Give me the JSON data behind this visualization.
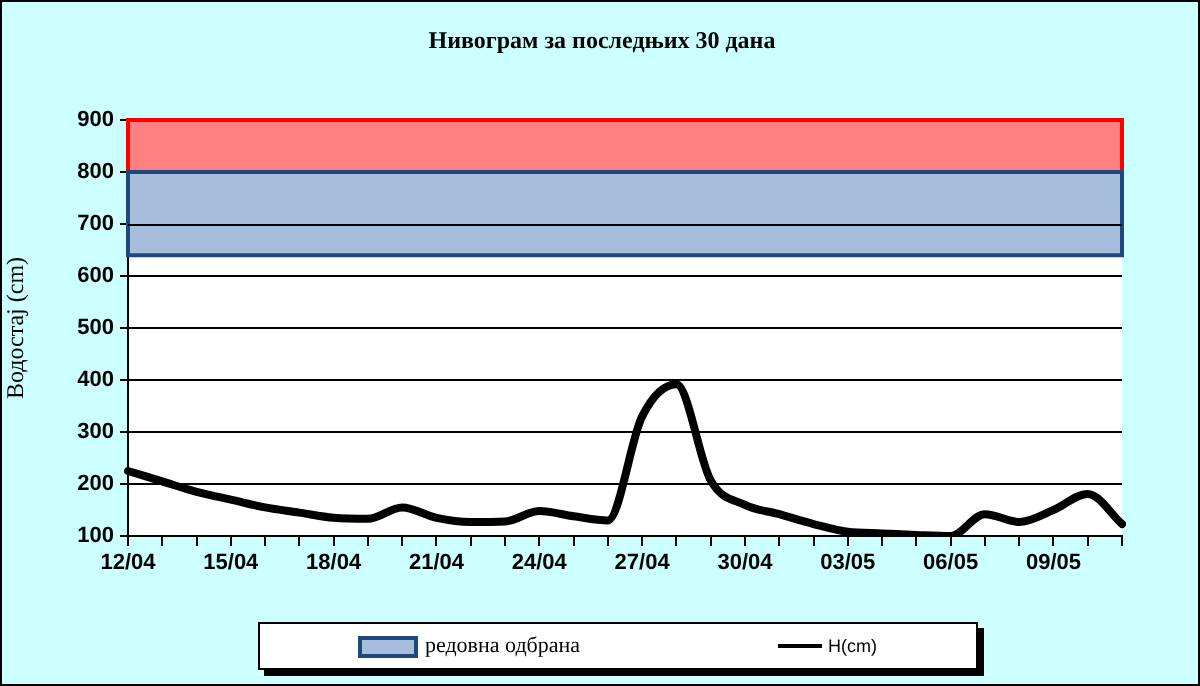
{
  "chart_data": {
    "type": "line",
    "title": "Нивограм за последњих 30 дана",
    "ylabel": "Водостај (cm)",
    "categories": [
      "12/04",
      null,
      null,
      "15/04",
      null,
      null,
      "18/04",
      null,
      null,
      "21/04",
      null,
      null,
      "24/04",
      null,
      null,
      "27/04",
      null,
      null,
      "30/04",
      null,
      null,
      "03/05",
      null,
      null,
      "06/05",
      null,
      null,
      "09/05",
      null,
      null
    ],
    "series": [
      {
        "name": "H(cm)",
        "color": "#000000",
        "values": [
          225,
          205,
          185,
          170,
          155,
          145,
          135,
          133,
          155,
          135,
          127,
          128,
          148,
          138,
          130,
          330,
          392,
          207,
          160,
          142,
          123,
          108,
          105,
          102,
          100,
          142,
          127,
          150,
          181,
          123
        ]
      }
    ],
    "bands": [
      {
        "axis": "y",
        "from": 800,
        "to": 900,
        "color": "#ff8080"
      },
      {
        "axis": "y",
        "from": 640,
        "to": 800,
        "label": "редовна одбрана",
        "color": "#a6bddb"
      }
    ],
    "ylim": [
      100,
      900
    ],
    "yticks": [
      100,
      200,
      300,
      400,
      500,
      600,
      700,
      800,
      900
    ],
    "grid": "y",
    "legend": "bottom",
    "marker": "none",
    "line_style": "solid"
  }
}
